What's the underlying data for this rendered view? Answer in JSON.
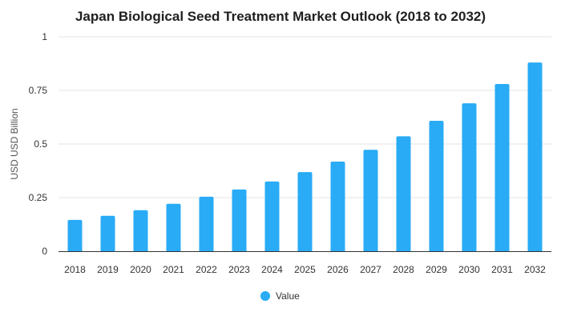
{
  "chart_data": {
    "type": "bar",
    "title": "Japan Biological Seed Treatment Market Outlook (2018 to 2032)",
    "xlabel": "",
    "ylabel": "USD USD Billion",
    "categories": [
      "2018",
      "2019",
      "2020",
      "2021",
      "2022",
      "2023",
      "2024",
      "2025",
      "2026",
      "2027",
      "2028",
      "2029",
      "2030",
      "2031",
      "2032"
    ],
    "series": [
      {
        "name": "Value",
        "color": "#29abf6",
        "values": [
          0.146,
          0.165,
          0.191,
          0.221,
          0.254,
          0.288,
          0.325,
          0.369,
          0.418,
          0.473,
          0.536,
          0.608,
          0.69,
          0.78,
          0.88
        ]
      }
    ],
    "ylim": [
      0,
      1
    ],
    "yticks": [
      {
        "value": 0,
        "label": "0"
      },
      {
        "value": 0.25,
        "label": "0.25"
      },
      {
        "value": 0.5,
        "label": "0.5"
      },
      {
        "value": 0.75,
        "label": "0.75"
      },
      {
        "value": 1,
        "label": "1"
      }
    ],
    "grid": true,
    "legend_position": "bottom"
  }
}
